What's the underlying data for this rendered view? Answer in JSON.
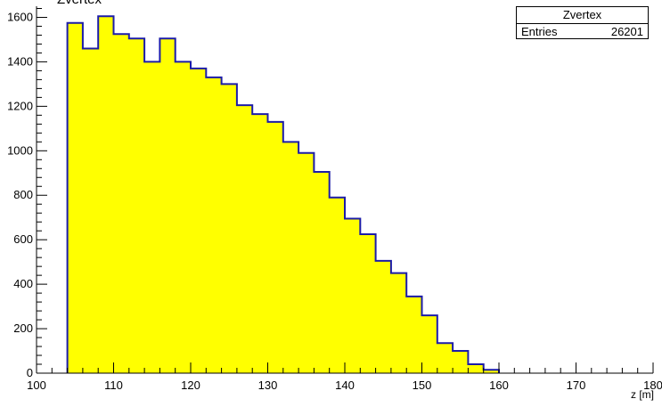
{
  "chart_data": {
    "type": "histogram",
    "title": "Zvertex",
    "xlabel": "z [m]",
    "ylabel": "",
    "xlim": [
      100,
      180
    ],
    "ylim": [
      0,
      1650
    ],
    "bin_width": 2,
    "x_ticks": [
      100,
      110,
      120,
      130,
      140,
      150,
      160,
      170,
      180
    ],
    "x_tick_labels": [
      "100",
      "110",
      "120",
      "130",
      "140",
      "150",
      "160",
      "170",
      "180"
    ],
    "y_ticks": [
      0,
      200,
      400,
      600,
      800,
      1000,
      1200,
      1400,
      1600
    ],
    "y_tick_labels": [
      "0",
      "200",
      "400",
      "600",
      "800",
      "1000",
      "1200",
      "1400",
      "1600"
    ],
    "fill_color": "#ffff00",
    "line_color": "#1c1ca8",
    "bins": [
      {
        "x0": 104,
        "x1": 106,
        "value": 1575
      },
      {
        "x0": 106,
        "x1": 108,
        "value": 1460
      },
      {
        "x0": 108,
        "x1": 110,
        "value": 1605
      },
      {
        "x0": 110,
        "x1": 112,
        "value": 1525
      },
      {
        "x0": 112,
        "x1": 114,
        "value": 1505
      },
      {
        "x0": 114,
        "x1": 116,
        "value": 1400
      },
      {
        "x0": 116,
        "x1": 118,
        "value": 1505
      },
      {
        "x0": 118,
        "x1": 120,
        "value": 1400
      },
      {
        "x0": 120,
        "x1": 122,
        "value": 1370
      },
      {
        "x0": 122,
        "x1": 124,
        "value": 1330
      },
      {
        "x0": 124,
        "x1": 126,
        "value": 1300
      },
      {
        "x0": 126,
        "x1": 128,
        "value": 1205
      },
      {
        "x0": 128,
        "x1": 130,
        "value": 1165
      },
      {
        "x0": 130,
        "x1": 132,
        "value": 1130
      },
      {
        "x0": 132,
        "x1": 134,
        "value": 1040
      },
      {
        "x0": 134,
        "x1": 136,
        "value": 990
      },
      {
        "x0": 136,
        "x1": 138,
        "value": 905
      },
      {
        "x0": 138,
        "x1": 140,
        "value": 790
      },
      {
        "x0": 140,
        "x1": 142,
        "value": 695
      },
      {
        "x0": 142,
        "x1": 144,
        "value": 625
      },
      {
        "x0": 144,
        "x1": 146,
        "value": 505
      },
      {
        "x0": 146,
        "x1": 148,
        "value": 450
      },
      {
        "x0": 148,
        "x1": 150,
        "value": 345
      },
      {
        "x0": 150,
        "x1": 152,
        "value": 260
      },
      {
        "x0": 152,
        "x1": 154,
        "value": 135
      },
      {
        "x0": 154,
        "x1": 156,
        "value": 100
      },
      {
        "x0": 156,
        "x1": 158,
        "value": 40
      },
      {
        "x0": 158,
        "x1": 160,
        "value": 15
      }
    ],
    "stats": {
      "name": "Zvertex",
      "entries_label": "Entries",
      "entries": "26201"
    }
  }
}
